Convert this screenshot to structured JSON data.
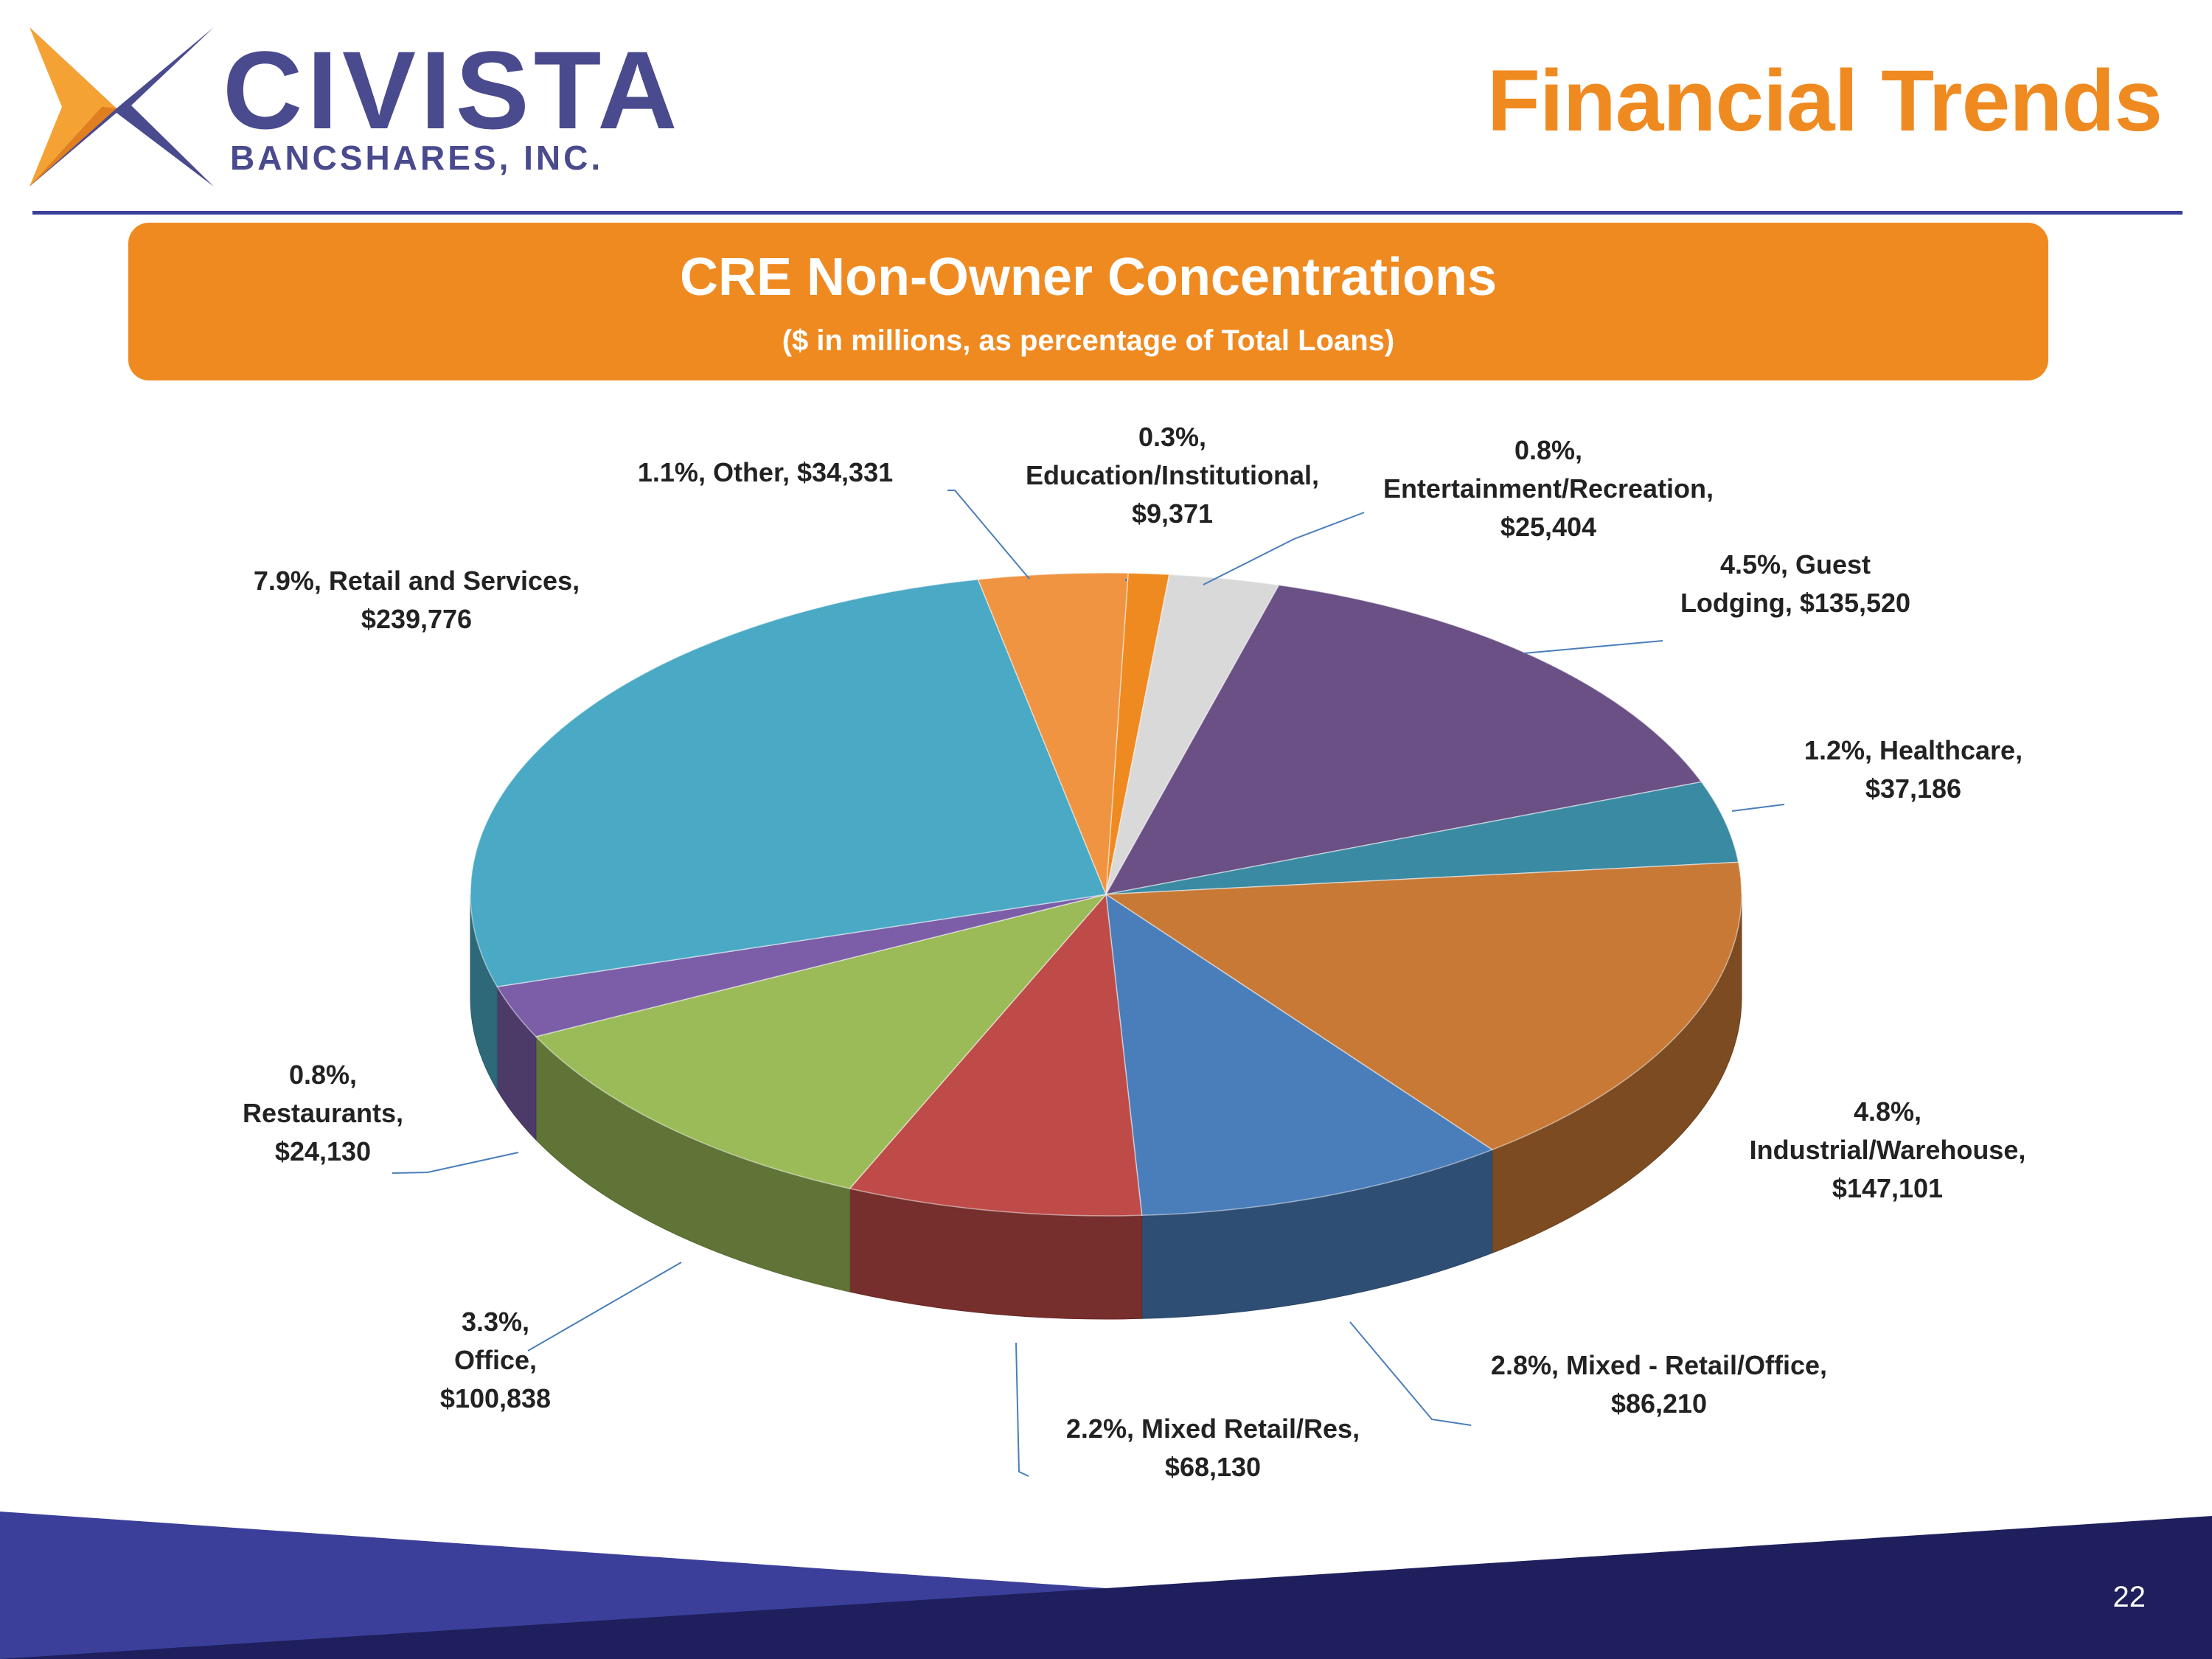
{
  "header": {
    "logo_name": "CIVISTA",
    "logo_sub": "BANCSHARES, INC.",
    "page_title": "Financial Trends"
  },
  "banner": {
    "title": "CRE Non-Owner Concentrations",
    "subtitle": "($ in millions, as percentage of Total Loans)"
  },
  "footer": {
    "page_number": "22"
  },
  "colors": {
    "accent_orange": "#ef8a21",
    "brand_navy": "#3b3f9a",
    "footer_dark": "#1e1f5c"
  },
  "chart_data": {
    "type": "pie",
    "style": "3d-exploded-pie",
    "title": "CRE Non-Owner Concentrations",
    "subtitle": "($ in millions, as percentage of Total Loans)",
    "slices": [
      {
        "name": "Education/Institutional",
        "percent": "0.3%",
        "value": 9371,
        "value_label": "$9,371",
        "color": "#ef8a21",
        "label_lines": [
          "0.3%,",
          "Education/Institutional,",
          "$9,371"
        ]
      },
      {
        "name": "Entertainment/Recreation",
        "percent": "0.8%",
        "value": 25404,
        "value_label": "$25,404",
        "color": "#d9d9d9",
        "label_lines": [
          "0.8%,",
          "Entertainment/Recreation,",
          "$25,404"
        ]
      },
      {
        "name": "Guest Lodging",
        "percent": "4.5%",
        "value": 135520,
        "value_label": "$135,520",
        "color": "#6a5084",
        "label_lines": [
          "4.5%, Guest",
          "Lodging, $135,520"
        ]
      },
      {
        "name": "Healthcare",
        "percent": "1.2%",
        "value": 37186,
        "value_label": "$37,186",
        "color": "#3a8aa3",
        "label_lines": [
          "1.2%, Healthcare,",
          "$37,186"
        ]
      },
      {
        "name": "Industrial/Warehouse",
        "percent": "4.8%",
        "value": 147101,
        "value_label": "$147,101",
        "color": "#c87936",
        "label_lines": [
          "4.8%,",
          "Industrial/Warehouse,",
          "$147,101"
        ]
      },
      {
        "name": "Mixed - Retail/Office",
        "percent": "2.8%",
        "value": 86210,
        "value_label": "$86,210",
        "color": "#4a7ebb",
        "label_lines": [
          "2.8%, Mixed - Retail/Office,",
          "$86,210"
        ]
      },
      {
        "name": "Mixed Retail/Res",
        "percent": "2.2%",
        "value": 68130,
        "value_label": "$68,130",
        "color": "#be4b48",
        "label_lines": [
          "2.2%, Mixed Retail/Res,",
          "$68,130"
        ]
      },
      {
        "name": "Office",
        "percent": "3.3%",
        "value": 100838,
        "value_label": "$100,838",
        "color": "#9bbb59",
        "label_lines": [
          "3.3%,",
          "Office,",
          "$100,838"
        ]
      },
      {
        "name": "Restaurants",
        "percent": "0.8%",
        "value": 24130,
        "value_label": "$24,130",
        "color": "#7b5ea7",
        "label_lines": [
          "0.8%,",
          "Restaurants,",
          "$24,130"
        ]
      },
      {
        "name": "Retail and Services",
        "percent": "7.9%",
        "value": 239776,
        "value_label": "$239,776",
        "color": "#4aa9c4",
        "label_lines": [
          "7.9%, Retail and Services,",
          "$239,776"
        ]
      },
      {
        "name": "Other",
        "percent": "1.1%",
        "value": 34331,
        "value_label": "$34,331",
        "color": "#f09442",
        "label_lines": [
          "1.1%, Other,  $34,331"
        ]
      }
    ]
  }
}
